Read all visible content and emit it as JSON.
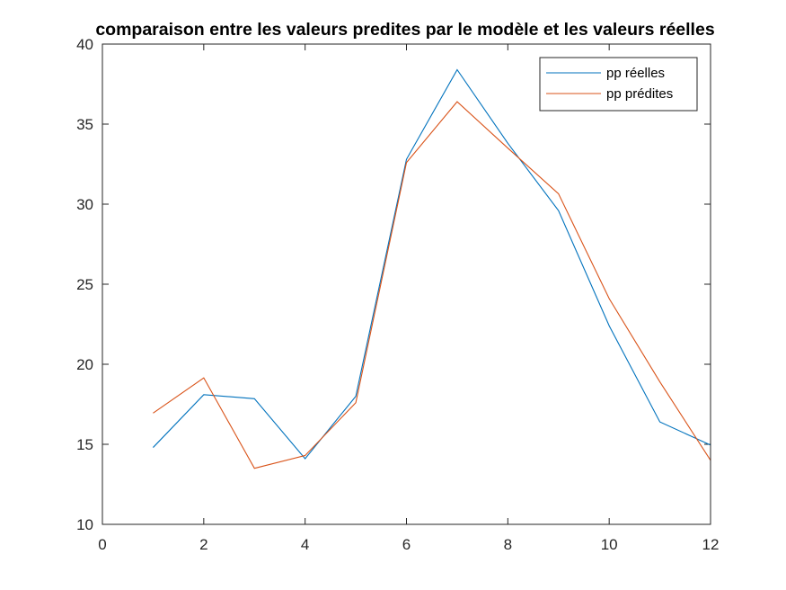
{
  "chart_data": {
    "type": "line",
    "title": "comparaison entre les valeurs predites par le modèle et les valeurs réelles",
    "xlabel": "",
    "ylabel": "",
    "xlim": [
      0,
      12
    ],
    "ylim": [
      10,
      40
    ],
    "xticks": [
      0,
      2,
      4,
      6,
      8,
      10,
      12
    ],
    "yticks": [
      10,
      15,
      20,
      25,
      30,
      35,
      40
    ],
    "grid": false,
    "legend_position": "top-right",
    "x": [
      1,
      2,
      3,
      4,
      5,
      6,
      7,
      8,
      9,
      10,
      11,
      12
    ],
    "series": [
      {
        "name": "pp réelles",
        "color": "#0072BD",
        "values": [
          14.8,
          18.1,
          17.85,
          14.1,
          18.0,
          32.8,
          38.4,
          33.8,
          29.6,
          22.4,
          16.4,
          14.95
        ]
      },
      {
        "name": "pp prédites",
        "color": "#D95319",
        "values": [
          16.95,
          19.15,
          13.5,
          14.3,
          17.6,
          32.6,
          36.4,
          33.5,
          30.65,
          24.1,
          18.9,
          14.0
        ]
      }
    ]
  }
}
